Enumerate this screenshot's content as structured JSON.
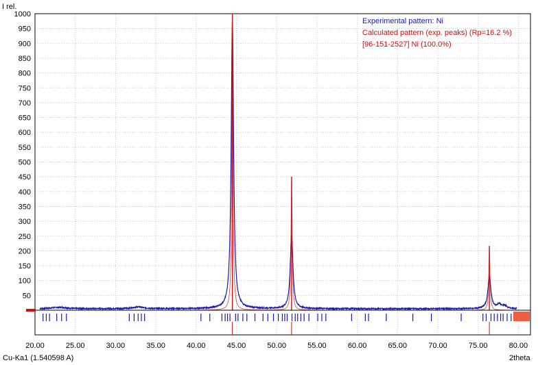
{
  "chart_data": {
    "type": "line",
    "ylabel": "I rel.",
    "xlabel": "2theta",
    "wavelength_label": "Cu-Ka1 (1.540598 A)",
    "xlim": [
      20,
      81.5
    ],
    "ylim": [
      0,
      1000
    ],
    "x_ticks": [
      "20.00",
      "25.00",
      "30.00",
      "35.00",
      "40.00",
      "45.00",
      "50.00",
      "55.00",
      "60.00",
      "65.00",
      "70.00",
      "75.00",
      "80.00"
    ],
    "x_tick_values": [
      20,
      25,
      30,
      35,
      40,
      45,
      50,
      55,
      60,
      65,
      70,
      75,
      80
    ],
    "y_ticks": [
      50,
      100,
      150,
      200,
      250,
      300,
      350,
      400,
      450,
      500,
      550,
      600,
      650,
      700,
      750,
      800,
      850,
      900,
      950,
      1000
    ],
    "grid": true,
    "legend": [
      {
        "label": "Experimental pattern: Ni",
        "color": "#1a1aaa"
      },
      {
        "label": "Calculated pattern (exp. peaks) (Rp=16.2 %)",
        "color": "#cc1111"
      },
      {
        "label": "[96-151-2527] Ni  (100.0%)",
        "color": "#cc1111"
      }
    ],
    "legend_position": "top-right",
    "series": [
      {
        "name": "Experimental pattern: Ni",
        "color": "#1a1aaa",
        "peaks": [
          {
            "x": 44.5,
            "height": 970,
            "width": 0.18
          },
          {
            "x": 51.85,
            "height": 250,
            "width": 0.2
          },
          {
            "x": 76.4,
            "height": 110,
            "width": 0.22
          },
          {
            "x": 77.6,
            "height": 14,
            "width": 0.3
          },
          {
            "x": 78.3,
            "height": 10,
            "width": 0.3
          },
          {
            "x": 32.8,
            "height": 6,
            "width": 0.8
          },
          {
            "x": 23.0,
            "height": 5,
            "width": 1.0
          }
        ],
        "baseline": 5
      },
      {
        "name": "Calculated pattern (exp. peaks) (Rp=16.2 %)",
        "color": "#cc1111",
        "peaks": [
          {
            "x": 44.5,
            "height": 1000,
            "width": 0.09
          },
          {
            "x": 51.85,
            "height": 450,
            "width": 0.09
          },
          {
            "x": 76.4,
            "height": 217,
            "width": 0.09
          }
        ]
      }
    ],
    "reference_lines": {
      "name": "[96-151-2527] Ni  (100.0%)",
      "color": "#cc1111",
      "x": [
        44.5,
        51.85,
        76.4
      ]
    },
    "candidate_ticks": {
      "color": "#1a1aaa",
      "x": [
        21.0,
        21.4,
        21.8,
        22.7,
        23.3,
        23.9,
        31.7,
        32.3,
        32.8,
        33.2,
        33.6,
        40.6,
        41.7,
        43.2,
        43.6,
        43.9,
        44.2,
        44.9,
        45.2,
        45.8,
        46.3,
        47.3,
        48.3,
        48.9,
        49.6,
        50.2,
        50.7,
        51.0,
        51.3,
        51.9,
        52.3,
        52.6,
        53.0,
        53.4,
        54.0,
        55.1,
        55.6,
        56.1,
        59.3,
        61.0,
        61.4,
        63.6,
        66.9,
        69.2,
        72.9,
        75.6,
        76.0,
        76.6,
        77.0,
        77.4,
        77.8,
        78.1,
        78.6,
        79.1
      ]
    },
    "range_marker_color": "#f06040"
  }
}
